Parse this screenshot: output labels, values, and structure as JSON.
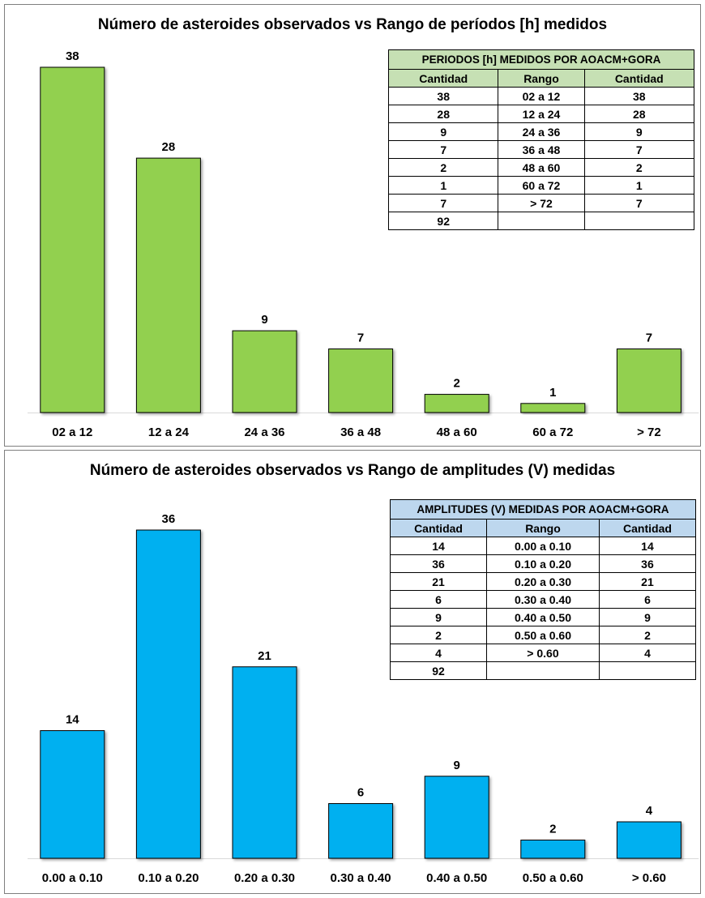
{
  "chart_data": [
    {
      "type": "bar",
      "title": "Número de asteroides observados vs Rango de períodos [h] medidos",
      "categories": [
        "02 a 12",
        "12 a 24",
        "24 a 36",
        "36 a 48",
        "48 a 60",
        "60 a 72",
        "> 72"
      ],
      "values": [
        38,
        28,
        9,
        7,
        2,
        1,
        7
      ],
      "bar_color": "#92d050",
      "ylim": [
        0,
        38
      ],
      "grid": false,
      "table": {
        "title": "PERIODOS [h] MEDIDOS POR AOACM+GORA",
        "headers": [
          "Cantidad",
          "Rango",
          "Cantidad"
        ],
        "rows": [
          [
            "38",
            "02 a 12",
            "38"
          ],
          [
            "28",
            "12 a 24",
            "28"
          ],
          [
            "9",
            "24 a 36",
            "9"
          ],
          [
            "7",
            "36 a 48",
            "7"
          ],
          [
            "2",
            "48 a 60",
            "2"
          ],
          [
            "1",
            "60 a 72",
            "1"
          ],
          [
            "7",
            "> 72",
            "7"
          ],
          [
            "92",
            "",
            ""
          ]
        ],
        "header_color": "#c6e0b4"
      }
    },
    {
      "type": "bar",
      "title": "Número de asteroides observados vs Rango de amplitudes (V) medidas",
      "categories": [
        "0.00 a 0.10",
        "0.10 a 0.20",
        "0.20 a 0.30",
        "0.30 a 0.40",
        "0.40 a 0.50",
        "0.50 a 0.60",
        "> 0.60"
      ],
      "values": [
        14,
        36,
        21,
        6,
        9,
        2,
        4
      ],
      "bar_color": "#00b0f0",
      "ylim": [
        0,
        36
      ],
      "grid": false,
      "table": {
        "title": "AMPLITUDES (V) MEDIDAS POR AOACM+GORA",
        "headers": [
          "Cantidad",
          "Rango",
          "Cantidad"
        ],
        "rows": [
          [
            "14",
            "0.00 a 0.10",
            "14"
          ],
          [
            "36",
            "0.10 a 0.20",
            "36"
          ],
          [
            "21",
            "0.20 a 0.30",
            "21"
          ],
          [
            "6",
            "0.30 a 0.40",
            "6"
          ],
          [
            "9",
            "0.40 a 0.50",
            "9"
          ],
          [
            "2",
            "0.50 a 0.60",
            "2"
          ],
          [
            "4",
            "> 0.60",
            "4"
          ],
          [
            "92",
            "",
            ""
          ]
        ],
        "header_color": "#bdd7ee"
      }
    }
  ]
}
